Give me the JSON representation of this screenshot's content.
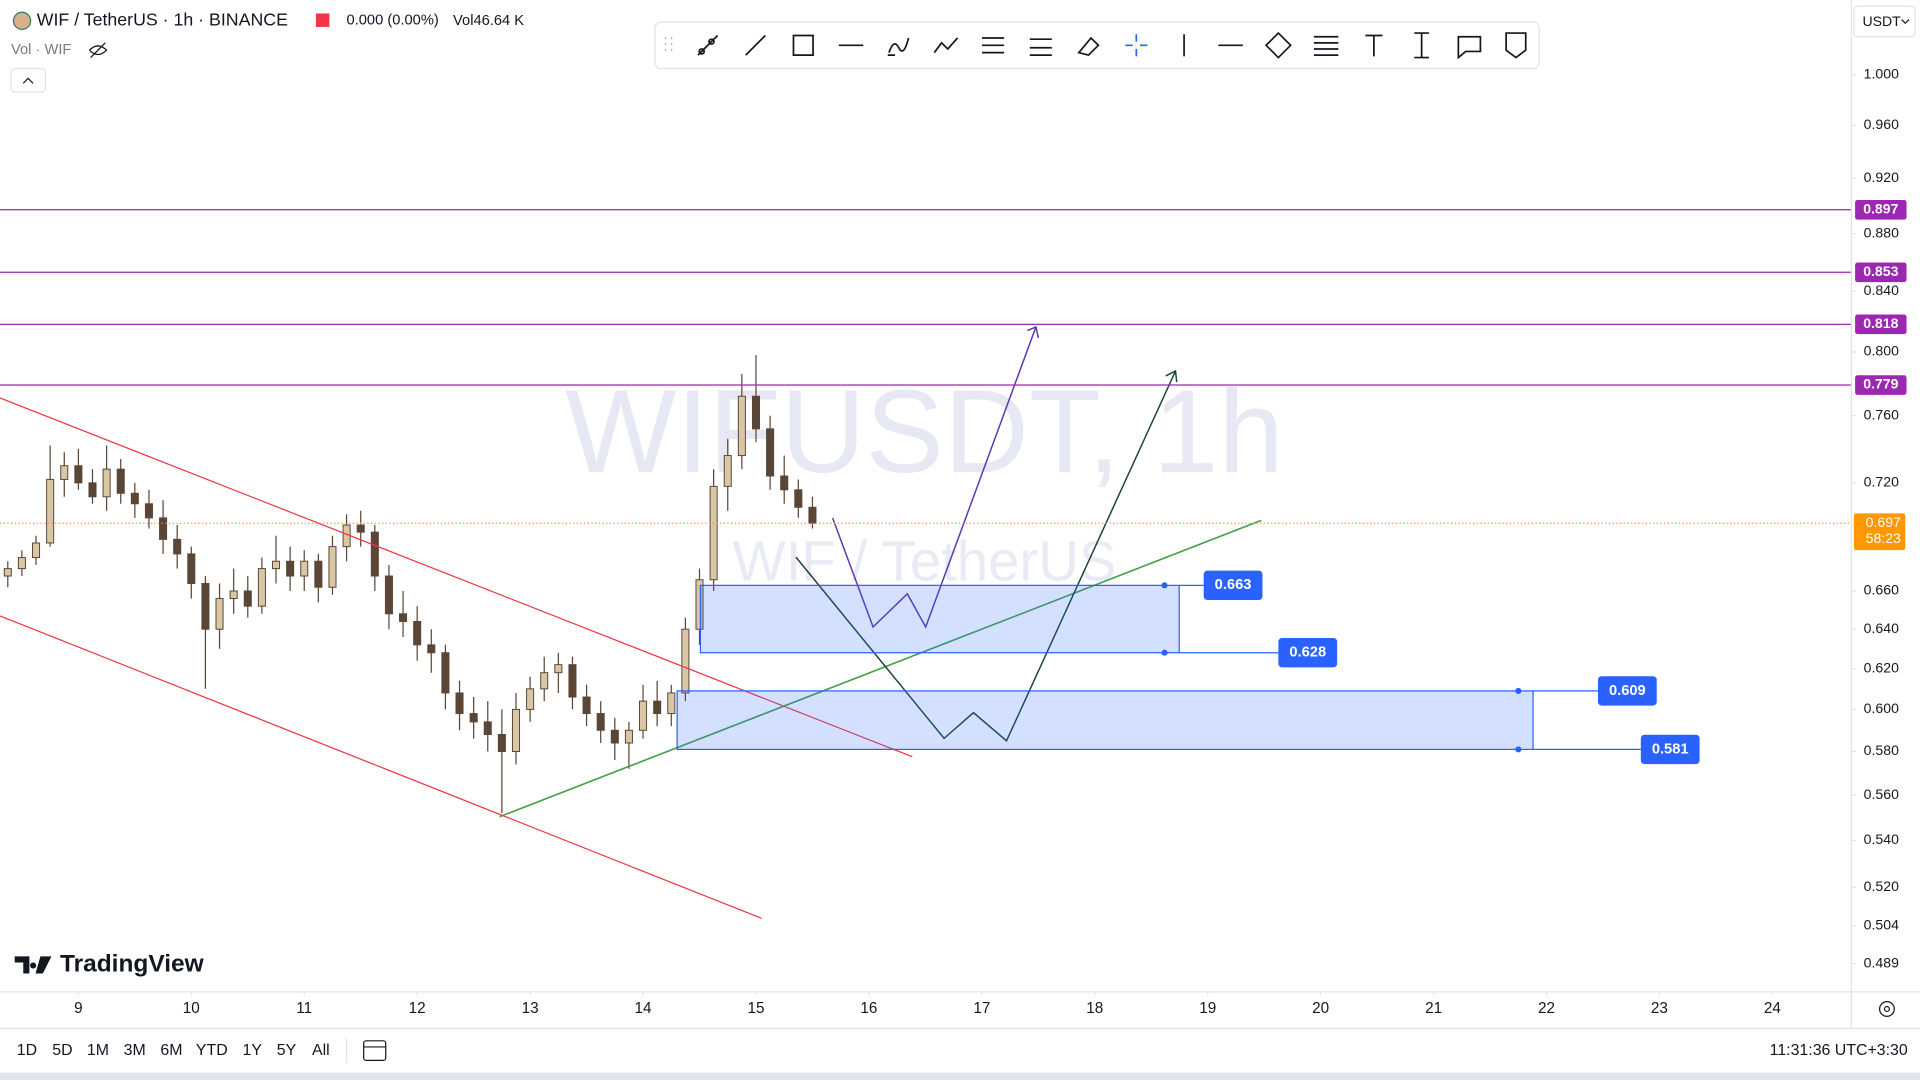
{
  "header": {
    "symbol": "WIF / TetherUS · 1h · BINANCE",
    "change": "0.000 (0.00%)",
    "volume_label": "Vol",
    "volume": "46.64 K",
    "indicator": "Vol · WIF"
  },
  "currency": "USDT",
  "watermark": {
    "symbol": "WIFUSDT, 1h",
    "name": "WIF / TetherUS"
  },
  "logo": "TradingView",
  "timeframes": [
    "1D",
    "5D",
    "1M",
    "3M",
    "6M",
    "YTD",
    "1Y",
    "5Y",
    "All"
  ],
  "clock": "11:31:36 UTC+3:30",
  "chart_data": {
    "type": "candlestick",
    "log_scale": true,
    "grid": false,
    "up_color": "#d9c6a5",
    "down_color": "#5a4636",
    "level_color": "#9c27b0",
    "zone_color": "#2962ff",
    "last_price_color": "#ff9800",
    "x": [
      8.375,
      8.5,
      8.625,
      8.75,
      8.875,
      9,
      9.125,
      9.25,
      9.375,
      9.5,
      9.625,
      9.75,
      9.875,
      10,
      10.125,
      10.25,
      10.375,
      10.5,
      10.625,
      10.75,
      10.875,
      11,
      11.125,
      11.25,
      11.375,
      11.5,
      11.625,
      11.75,
      11.875,
      12,
      12.125,
      12.25,
      12.375,
      12.5,
      12.625,
      12.75,
      12.875,
      13,
      13.125,
      13.25,
      13.375,
      13.5,
      13.625,
      13.75,
      13.875,
      14,
      14.125,
      14.25,
      14.375,
      14.5,
      14.625,
      14.75,
      14.875,
      15,
      15.125,
      15.25,
      15.375,
      15.5
    ],
    "open": [
      0.668,
      0.672,
      0.678,
      0.686,
      0.722,
      0.73,
      0.72,
      0.712,
      0.728,
      0.714,
      0.708,
      0.7,
      0.688,
      0.68,
      0.664,
      0.64,
      0.656,
      0.66,
      0.652,
      0.672,
      0.676,
      0.668,
      0.676,
      0.662,
      0.684,
      0.696,
      0.692,
      0.668,
      0.648,
      0.644,
      0.632,
      0.628,
      0.608,
      0.598,
      0.594,
      0.588,
      0.58,
      0.6,
      0.61,
      0.618,
      0.622,
      0.606,
      0.598,
      0.59,
      0.584,
      0.59,
      0.604,
      0.598,
      0.608,
      0.64,
      0.666,
      0.718,
      0.736,
      0.772,
      0.752,
      0.724,
      0.716,
      0.706
    ],
    "high": [
      0.676,
      0.682,
      0.69,
      0.742,
      0.738,
      0.74,
      0.728,
      0.742,
      0.734,
      0.72,
      0.716,
      0.71,
      0.696,
      0.684,
      0.668,
      0.664,
      0.672,
      0.668,
      0.678,
      0.69,
      0.684,
      0.682,
      0.68,
      0.69,
      0.702,
      0.704,
      0.696,
      0.674,
      0.66,
      0.652,
      0.64,
      0.632,
      0.614,
      0.606,
      0.604,
      0.6,
      0.608,
      0.616,
      0.626,
      0.628,
      0.626,
      0.612,
      0.604,
      0.596,
      0.594,
      0.612,
      0.614,
      0.612,
      0.646,
      0.672,
      0.728,
      0.746,
      0.786,
      0.798,
      0.76,
      0.736,
      0.722,
      0.712
    ],
    "low": [
      0.662,
      0.668,
      0.674,
      0.684,
      0.712,
      0.716,
      0.708,
      0.704,
      0.708,
      0.7,
      0.694,
      0.68,
      0.672,
      0.656,
      0.61,
      0.63,
      0.648,
      0.646,
      0.648,
      0.664,
      0.66,
      0.66,
      0.654,
      0.658,
      0.676,
      0.684,
      0.66,
      0.64,
      0.636,
      0.624,
      0.618,
      0.6,
      0.59,
      0.586,
      0.58,
      0.552,
      0.574,
      0.594,
      0.604,
      0.608,
      0.6,
      0.592,
      0.584,
      0.576,
      0.572,
      0.586,
      0.592,
      0.592,
      0.604,
      0.632,
      0.66,
      0.704,
      0.728,
      0.744,
      0.716,
      0.708,
      0.7,
      0.694
    ],
    "close": [
      0.672,
      0.678,
      0.686,
      0.722,
      0.73,
      0.72,
      0.712,
      0.728,
      0.714,
      0.708,
      0.7,
      0.688,
      0.68,
      0.664,
      0.64,
      0.656,
      0.66,
      0.652,
      0.672,
      0.676,
      0.668,
      0.676,
      0.662,
      0.684,
      0.696,
      0.692,
      0.668,
      0.648,
      0.644,
      0.632,
      0.628,
      0.608,
      0.598,
      0.594,
      0.588,
      0.58,
      0.6,
      0.61,
      0.618,
      0.622,
      0.606,
      0.598,
      0.59,
      0.584,
      0.59,
      0.604,
      0.598,
      0.608,
      0.64,
      0.666,
      0.718,
      0.736,
      0.772,
      0.752,
      0.724,
      0.716,
      0.706,
      0.697
    ],
    "xlim": [
      8.306,
      24.7
    ],
    "xticks": [
      9,
      10,
      11,
      12,
      13,
      14,
      15,
      16,
      17,
      18,
      19,
      20,
      21,
      22,
      23,
      24
    ],
    "ylim": [
      0.478,
      1.062
    ],
    "yticks": [
      {
        "value": 1,
        "label": "1.000"
      },
      {
        "value": 0.96,
        "label": "0.960"
      },
      {
        "value": 0.92,
        "label": "0.920"
      },
      {
        "value": 0.88,
        "label": "0.880"
      },
      {
        "value": 0.84,
        "label": "0.840"
      },
      {
        "value": 0.8,
        "label": "0.800"
      },
      {
        "value": 0.76,
        "label": "0.760"
      },
      {
        "value": 0.72,
        "label": "0.720"
      },
      {
        "value": 0.66,
        "label": "0.660"
      },
      {
        "value": 0.64,
        "label": "0.640"
      },
      {
        "value": 0.62,
        "label": "0.620"
      },
      {
        "value": 0.6,
        "label": "0.600"
      },
      {
        "value": 0.58,
        "label": "0.580"
      },
      {
        "value": 0.56,
        "label": "0.560"
      },
      {
        "value": 0.54,
        "label": "0.540"
      },
      {
        "value": 0.52,
        "label": "0.520"
      },
      {
        "value": 0.504,
        "label": "0.504"
      },
      {
        "value": 0.489,
        "label": "0.489"
      }
    ],
    "levels": [
      0.897,
      0.853,
      0.818,
      0.779
    ],
    "last_price": {
      "value": 0.697,
      "countdown": "58:23"
    },
    "zones": [
      {
        "top": 0.663,
        "bottom": 0.628
      },
      {
        "top": 0.609,
        "bottom": 0.581
      }
    ]
  }
}
